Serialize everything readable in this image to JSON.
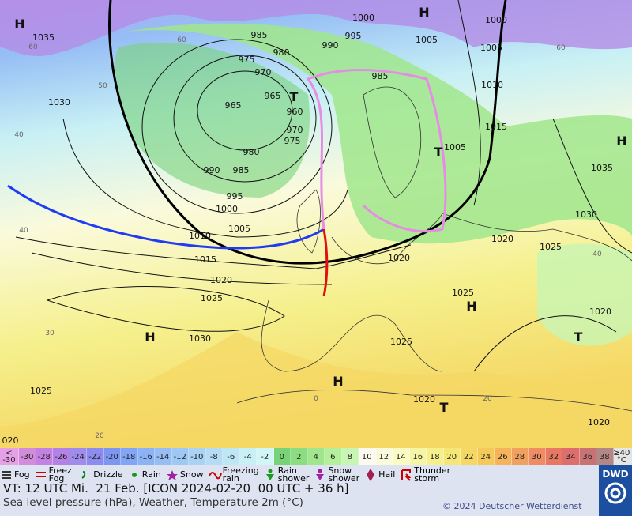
{
  "map": {
    "isobar_labels": [
      "1035",
      "1000",
      "1000",
      "1005",
      "1005",
      "985",
      "980",
      "975",
      "970",
      "965",
      "960",
      "965",
      "970",
      "975",
      "980",
      "985",
      "990",
      "995",
      "1000",
      "1005",
      "1010",
      "1015",
      "1020",
      "1025",
      "1030",
      "1025",
      "1030",
      "1025",
      "1020",
      "1020",
      "1020",
      "1025",
      "1030",
      "1035",
      "1015",
      "1010",
      "1005",
      "1020",
      "1020",
      "1025",
      "990",
      "995",
      "985",
      "020"
    ],
    "centers": [
      "H",
      "H",
      "H",
      "H",
      "H",
      "H",
      "T",
      "T",
      "T",
      "T"
    ],
    "temperature_labels": [
      "60",
      "60",
      "60",
      "50",
      "40",
      "40",
      "40",
      "30",
      "20",
      "20",
      "0"
    ]
  },
  "legend": {
    "color_scale": [
      {
        "lines": [
          "<",
          "-30"
        ],
        "color": "#e6a0e6"
      },
      {
        "label": "-30",
        "color": "#d28cdc"
      },
      {
        "label": "-28",
        "color": "#c382e1"
      },
      {
        "label": "-26",
        "color": "#b482e6"
      },
      {
        "label": "-24",
        "color": "#a08ceb"
      },
      {
        "label": "-22",
        "color": "#8c8cf0"
      },
      {
        "label": "-20",
        "color": "#7d96f0"
      },
      {
        "label": "-18",
        "color": "#82a5f5"
      },
      {
        "label": "-16",
        "color": "#8cb4f5"
      },
      {
        "label": "-14",
        "color": "#96bef5"
      },
      {
        "label": "-12",
        "color": "#a0c8f5"
      },
      {
        "label": "-10",
        "color": "#aad2f5"
      },
      {
        "label": "-8",
        "color": "#b4dcf5"
      },
      {
        "label": "-6",
        "color": "#bee6f5"
      },
      {
        "label": "-4",
        "color": "#c8f0f5"
      },
      {
        "label": "-2",
        "color": "#d2f5f5"
      },
      {
        "label": "0",
        "color": "#78d278"
      },
      {
        "label": "2",
        "color": "#8cdc82"
      },
      {
        "label": "4",
        "color": "#a0e68c"
      },
      {
        "label": "6",
        "color": "#b4f09b"
      },
      {
        "label": "8",
        "color": "#c8f5b4"
      },
      {
        "label": "10",
        "color": "#fafaf0"
      },
      {
        "label": "12",
        "color": "#fafadc"
      },
      {
        "label": "14",
        "color": "#fafac3"
      },
      {
        "label": "16",
        "color": "#f5f5a5"
      },
      {
        "label": "18",
        "color": "#f5f08c"
      },
      {
        "label": "20",
        "color": "#f5e678"
      },
      {
        "label": "22",
        "color": "#f5d764"
      },
      {
        "label": "24",
        "color": "#f5c85a"
      },
      {
        "label": "26",
        "color": "#f5b45a"
      },
      {
        "label": "28",
        "color": "#f0a05f"
      },
      {
        "label": "30",
        "color": "#f08c64"
      },
      {
        "label": "32",
        "color": "#e67864"
      },
      {
        "label": "34",
        "color": "#dc6e6e"
      },
      {
        "label": "36",
        "color": "#c87373"
      },
      {
        "label": "38",
        "color": "#b48787"
      },
      {
        "lines": [
          "≥40",
          "°C"
        ],
        "color": "#e6e6e6"
      }
    ],
    "weather": [
      {
        "lines": [
          "Fog"
        ]
      },
      {
        "lines": [
          "Freez.",
          "Fog"
        ]
      },
      {
        "lines": [
          "Drizzle"
        ]
      },
      {
        "lines": [
          "Rain"
        ]
      },
      {
        "lines": [
          "Snow"
        ]
      },
      {
        "lines": [
          "Freezing",
          "rain"
        ]
      },
      {
        "lines": [
          "Rain",
          "shower"
        ]
      },
      {
        "lines": [
          "Snow",
          "shower"
        ]
      },
      {
        "lines": [
          "Hail"
        ]
      },
      {
        "lines": [
          "Thunder",
          "storm"
        ]
      }
    ]
  },
  "footer": {
    "valid_time": "VT: 12 UTC Mi.  21 Feb. [ICON 2024-02-20  00 UTC + 36 h]",
    "description": "Sea level pressure (hPa), Weather, Temperature 2m (°C)",
    "copyright": "© 2024 Deutscher Wetterdienst",
    "logo": "DWD"
  }
}
